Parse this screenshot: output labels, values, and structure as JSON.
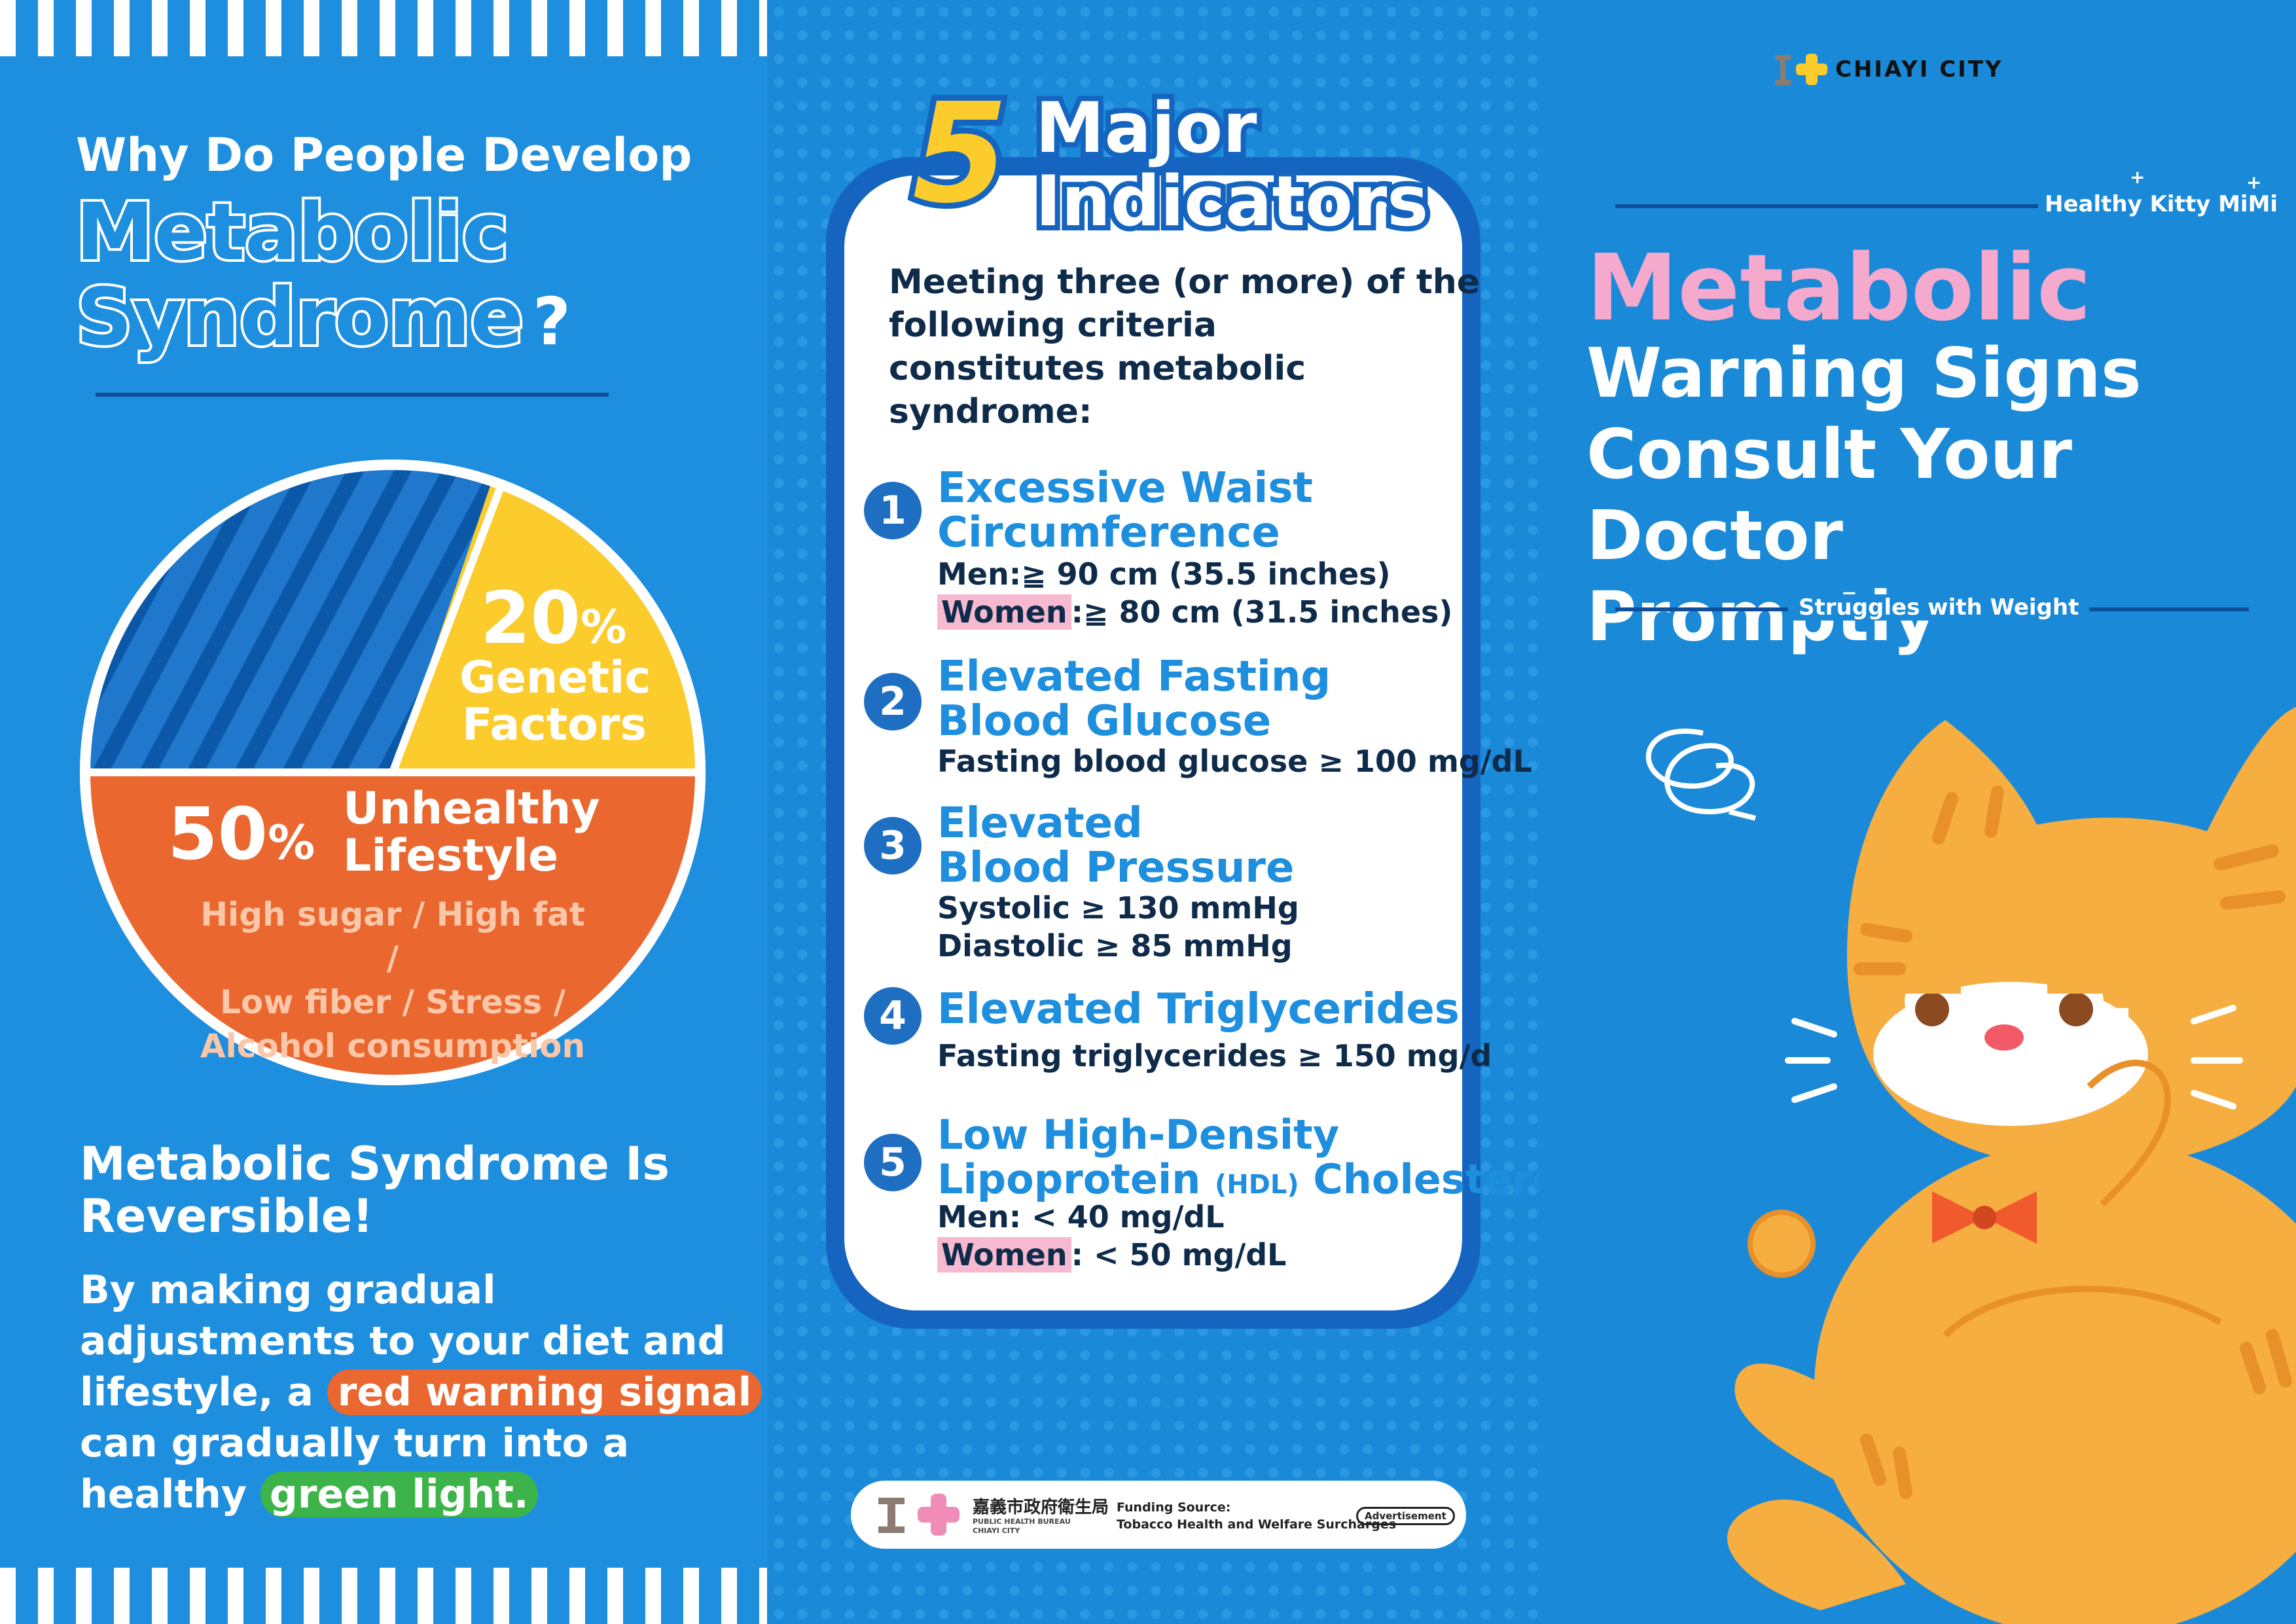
{
  "left": {
    "question_line1": "Why Do People Develop",
    "question_line2": "Metabolic",
    "question_line3": "Syndrome",
    "question_mark": "?",
    "pie": {
      "genetic_pct": "20",
      "genetic_pct_sign": "%",
      "genetic_label_1": "Genetic",
      "genetic_label_2": "Factors",
      "lifestyle_pct": "50",
      "lifestyle_pct_sign": "%",
      "lifestyle_label_1": "Unhealthy",
      "lifestyle_label_2": "Lifestyle",
      "lifestyle_detail_1": "High sugar / High fat /",
      "lifestyle_detail_2": "Low fiber / Stress /",
      "lifestyle_detail_3": "Alcohol consumption",
      "colors": {
        "stripe_dark": "#0e5fb4",
        "stripe_light": "#2b7fd0",
        "genetic": "#fccb2c",
        "lifestyle": "#ea672f"
      }
    },
    "reversible_title_1": "Metabolic Syndrome Is",
    "reversible_title_2": "Reversible!",
    "body_line1": "By making gradual",
    "body_line2": "adjustments to your diet and",
    "body_line3_a": "lifestyle, a",
    "body_line3_b": "red warning signal",
    "body_line4": "can gradually turn into a",
    "body_line5_a": "healthy",
    "body_line5_b": "green light."
  },
  "center": {
    "big_number": "5",
    "title_1": "Major",
    "title_2": "Indicators",
    "intro_1": "Meeting three (or more) of the",
    "intro_2": "following criteria",
    "intro_3": "constitutes metabolic",
    "intro_4": "syndrome:",
    "items": [
      {
        "num": "1",
        "title_1": "Excessive Waist",
        "title_2": "Circumference",
        "d1_a": "Men:≧ 90 cm (35.5 inches)",
        "d2_hl": "Women",
        "d2_b": ":≧ 80 cm (31.5 inches)"
      },
      {
        "num": "2",
        "title_1": "Elevated Fasting",
        "title_2": "Blood Glucose",
        "d1_a": "Fasting blood glucose ≥ 100 mg/dL"
      },
      {
        "num": "3",
        "title_1": "Elevated",
        "title_2": "Blood Pressure",
        "d1_a": "Systolic ≥ 130 mmHg",
        "d2_b": "Diastolic ≥ 85 mmHg"
      },
      {
        "num": "4",
        "title_1": "Elevated Triglycerides",
        "d1_a": "Fasting triglycerides ≥ 150 mg/d"
      },
      {
        "num": "5",
        "title_1": "Low High-Density",
        "title_2a": "Lipoprotein",
        "title_2b": "(HDL)",
        "title_2c": "Cholesterol",
        "d1_a": "Men: < 40 mg/dL",
        "d2_hl": "Women",
        "d2_b": ": < 50 mg/dL"
      }
    ],
    "footer": {
      "org_cn": "嘉義市政府衛生局",
      "org_en_1": "PUBLIC HEALTH BUREAU",
      "org_en_2": "CHIAYI CITY",
      "funding_label": "Funding Source:",
      "funding_value": "Tobacco Health and Welfare Surcharges",
      "badge": "Advertisement"
    }
  },
  "right": {
    "city_logo": "CHIAYI CITY",
    "series_name": "Healthy Kitty MiMi",
    "title_1": "Metabolic",
    "title_2": "Warning Signs",
    "title_3": "Consult Your Doctor",
    "title_4": "Promptly",
    "subtitle": "Struggles with Weight",
    "colors": {
      "pink": "#f5a9cc",
      "cat": "#f7ae40",
      "cat_stripe": "#e8902a",
      "bow": "#f15a2c"
    }
  }
}
